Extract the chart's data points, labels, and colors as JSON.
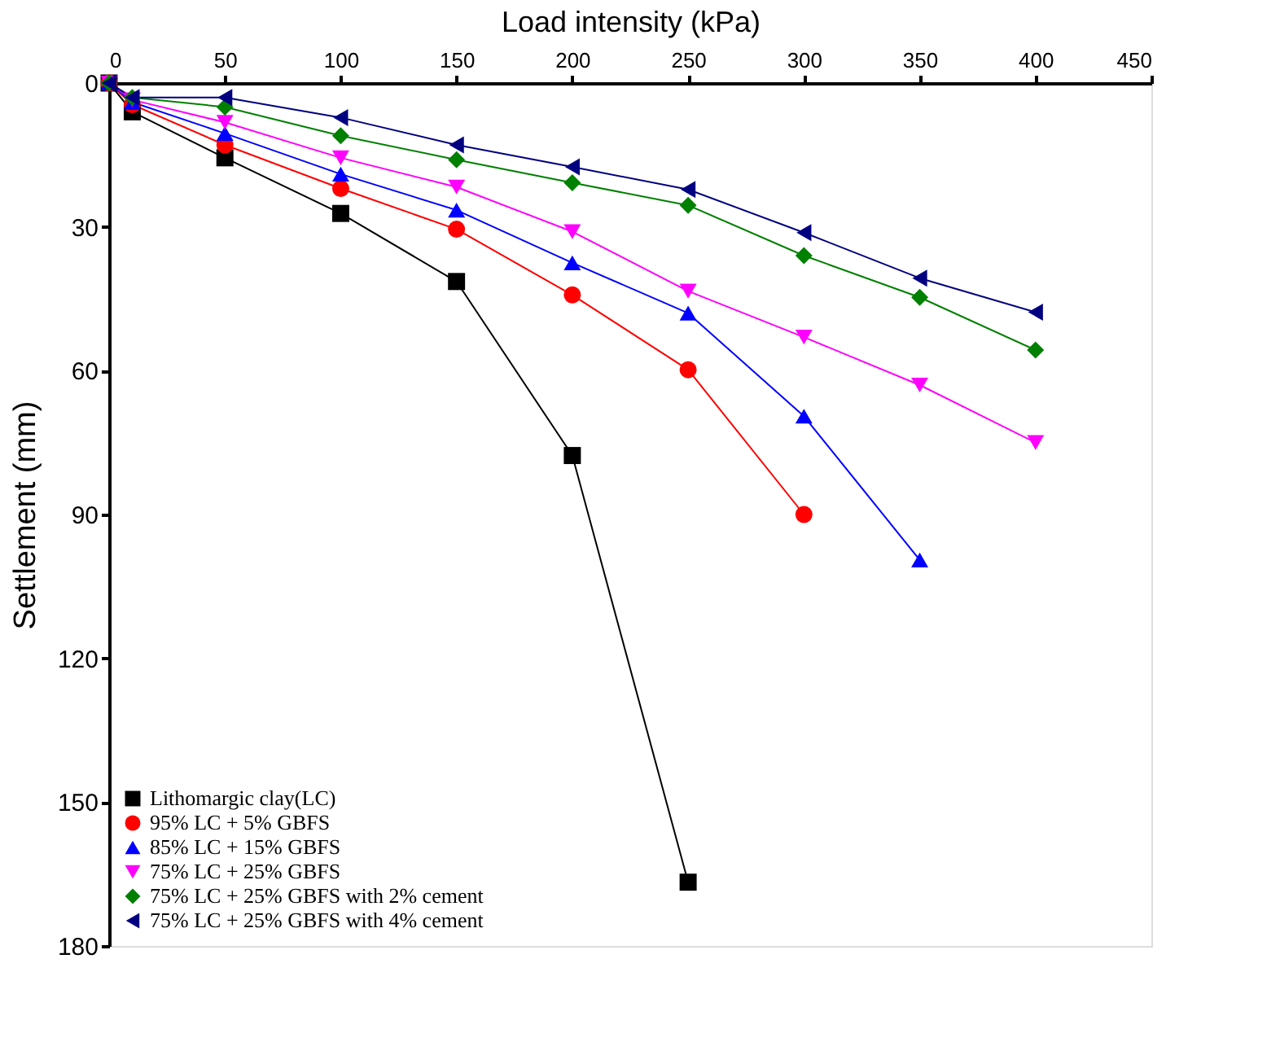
{
  "chart_data": {
    "type": "line",
    "xlabel": "Load intensity (kPa)",
    "ylabel": "Settlement (mm)",
    "xlim": [
      0,
      450
    ],
    "xticks": [
      0,
      50,
      100,
      150,
      200,
      250,
      300,
      350,
      400,
      450
    ],
    "ylim": [
      180,
      0
    ],
    "yticks": [
      0,
      30,
      60,
      90,
      120,
      150,
      180
    ],
    "grid": false,
    "legend": "bottom left",
    "line_style": "solid",
    "series": [
      {
        "name": "Lithomargic clay(LC)",
        "color": "#000000",
        "marker": "square",
        "x": [
          0,
          10,
          50,
          100,
          150,
          200,
          250
        ],
        "values": [
          0,
          6,
          15.6,
          27.2,
          41.4,
          77.7,
          166.7
        ]
      },
      {
        "name": "95% LC + 5% GBFS",
        "color": "#ff0000",
        "marker": "circle",
        "x": [
          0,
          10,
          50,
          100,
          150,
          200,
          250,
          300
        ],
        "values": [
          0,
          4.5,
          12.9,
          22,
          30.5,
          44.2,
          59.8,
          90
        ]
      },
      {
        "name": "85% LC + 15% GBFS",
        "color": "#0000ff",
        "marker": "triangle-up",
        "x": [
          0,
          10,
          50,
          100,
          150,
          200,
          250,
          300,
          350
        ],
        "values": [
          0,
          4,
          10.5,
          19,
          26.5,
          37.5,
          48,
          69.5,
          99.5
        ]
      },
      {
        "name": "75% LC + 25% GBFS",
        "color": "#ff00ff",
        "marker": "triangle-down",
        "x": [
          0,
          10,
          50,
          100,
          150,
          200,
          250,
          300,
          350,
          400
        ],
        "values": [
          0,
          3.5,
          8.2,
          15.6,
          21.7,
          31,
          43.4,
          53,
          63,
          75
        ]
      },
      {
        "name": "75% LC + 25% GBFS with 2% cement",
        "color": "#008000",
        "marker": "diamond",
        "x": [
          0,
          10,
          50,
          100,
          150,
          200,
          250,
          300,
          350,
          400
        ],
        "values": [
          0,
          3,
          5,
          11,
          16,
          20.8,
          25.5,
          36,
          44.7,
          55.7
        ]
      },
      {
        "name": "75% LC + 25% GBFS with 4% cement",
        "color": "#000080",
        "marker": "triangle-left",
        "x": [
          0,
          10,
          50,
          100,
          150,
          200,
          250,
          300,
          350,
          400
        ],
        "values": [
          0,
          3,
          3,
          7.2,
          12.9,
          17.5,
          22.2,
          31.2,
          40.7,
          47.8
        ]
      }
    ]
  }
}
